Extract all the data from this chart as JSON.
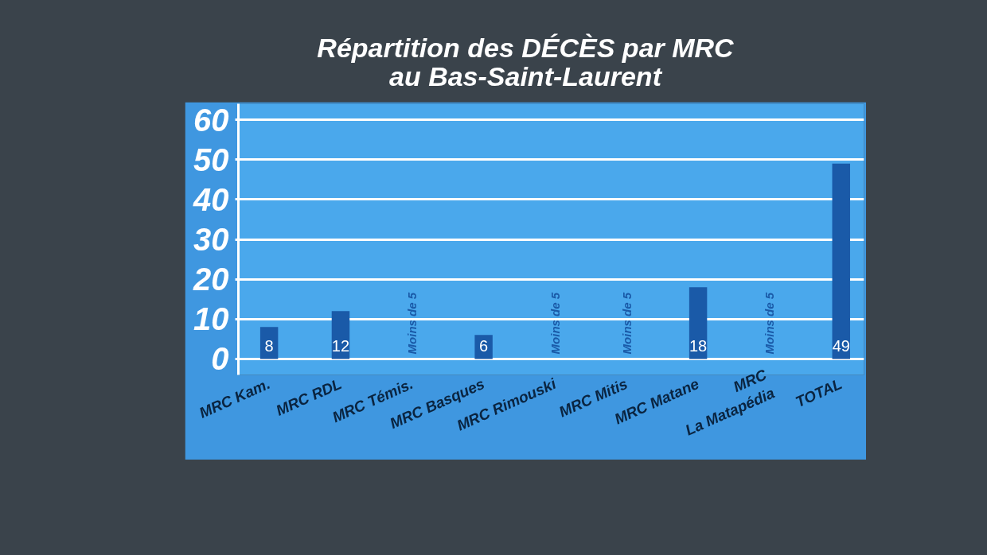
{
  "chart_data": {
    "type": "bar",
    "title": "Répartition des DÉCÈS par MRC\nau Bas-Saint-Laurent",
    "categories": [
      "MRC Kam.",
      "MRC RDL",
      "MRC Témis.",
      "MRC Basques",
      "MRC Rimouski",
      "MRC Mitis",
      "MRC Matane",
      "MRC\nLa Matapédia",
      "TOTAL"
    ],
    "values": [
      8,
      12,
      null,
      6,
      null,
      null,
      18,
      null,
      49
    ],
    "value_labels": [
      "8",
      "12",
      "Moins de 5",
      "6",
      "Moins de 5",
      "Moins de 5",
      "18",
      "Moins de 5",
      "49"
    ],
    "color": "#1a5aa8",
    "ylim": [
      -4,
      64
    ],
    "yticks": [
      0,
      10,
      20,
      30,
      40,
      50,
      60
    ],
    "grid": "y"
  }
}
